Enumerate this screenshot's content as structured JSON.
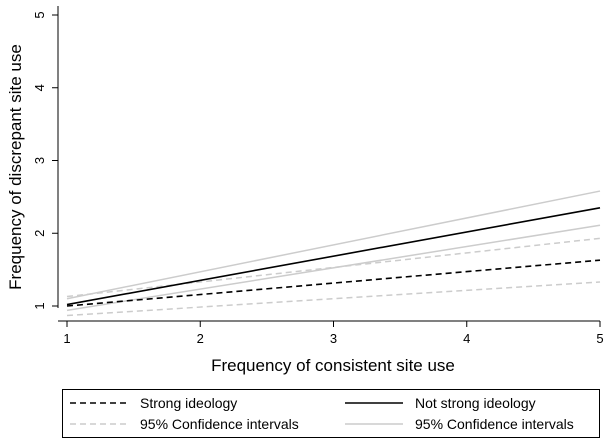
{
  "chart_data": {
    "type": "line",
    "xlabel": "Frequency of consistent site use",
    "ylabel": "Frequency of discrepant site use",
    "xlim": [
      1,
      5
    ],
    "ylim": [
      1,
      5
    ],
    "xticks": [
      "1",
      "2",
      "3",
      "4",
      "5"
    ],
    "yticks": [
      "1",
      "2",
      "3",
      "4",
      "5"
    ],
    "grid": false,
    "legend_position": "bottom",
    "series": [
      {
        "name": "Strong ideology",
        "style": "dashed",
        "color": "#000000",
        "x": [
          1,
          5
        ],
        "y": [
          1.0,
          1.63
        ]
      },
      {
        "name": "95% Confidence intervals",
        "style": "dashed",
        "color": "#cccccc",
        "role": "ci-upper",
        "x": [
          1,
          5
        ],
        "y": [
          1.13,
          1.93
        ]
      },
      {
        "name": "95% Confidence intervals",
        "style": "dashed",
        "color": "#cccccc",
        "role": "ci-lower",
        "x": [
          1,
          5
        ],
        "y": [
          0.87,
          1.33
        ]
      },
      {
        "name": "Not strong ideology",
        "style": "solid",
        "color": "#000000",
        "x": [
          1,
          5
        ],
        "y": [
          1.02,
          2.35
        ]
      },
      {
        "name": "95% Confidence intervals",
        "style": "solid",
        "color": "#cccccc",
        "role": "ci-upper",
        "x": [
          1,
          5
        ],
        "y": [
          1.1,
          2.58
        ]
      },
      {
        "name": "95% Confidence intervals",
        "style": "solid",
        "color": "#cccccc",
        "role": "ci-lower",
        "x": [
          1,
          5
        ],
        "y": [
          0.94,
          2.11
        ]
      }
    ],
    "legend": {
      "entries": [
        {
          "label": "Strong ideology",
          "style": "dashed",
          "color": "#000000"
        },
        {
          "label": "Not strong ideology",
          "style": "solid",
          "color": "#000000"
        },
        {
          "label": "95% Confidence intervals",
          "style": "dashed",
          "color": "#cccccc"
        },
        {
          "label": "95% Confidence intervals",
          "style": "solid",
          "color": "#cccccc"
        }
      ]
    }
  }
}
